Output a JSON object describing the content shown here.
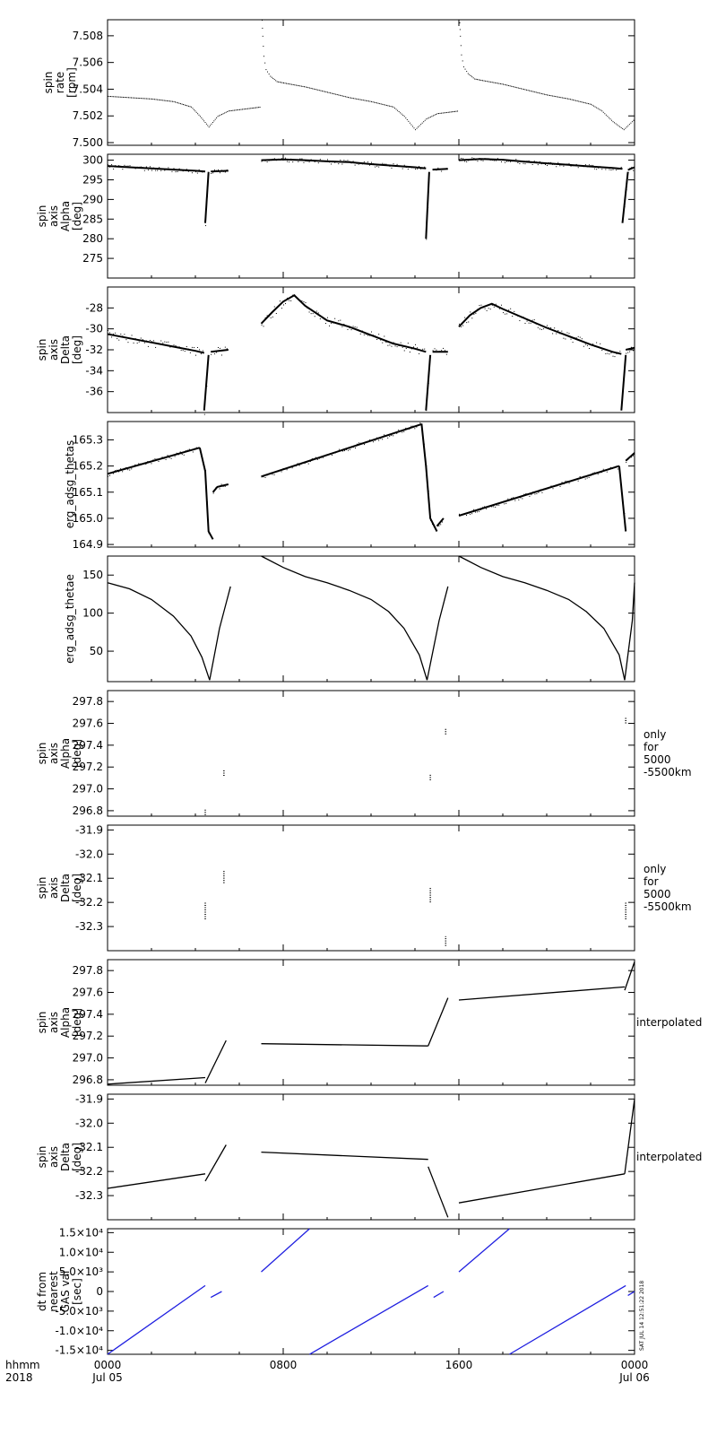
{
  "chart_data": [
    {
      "type": "line",
      "ylabel_lines": [
        "spin",
        "rate",
        "[rpm]"
      ],
      "yticks": [
        "7.500",
        "7.502",
        "7.504",
        "7.506",
        "7.508"
      ],
      "ylim": [
        7.4998,
        7.5092
      ],
      "style": "dots",
      "color": "#000000",
      "series": [
        {
          "x": [
            0,
            1,
            2,
            3,
            3.8,
            4.2,
            4.6,
            5.0,
            5.5,
            6.0,
            6.5,
            6.98
          ],
          "y": [
            7.5035,
            7.5034,
            7.5033,
            7.5031,
            7.5027,
            7.502,
            7.5012,
            7.502,
            7.5024,
            7.5025,
            7.5026,
            7.5027
          ]
        },
        {
          "x": [
            7.02,
            7.05,
            7.1,
            7.2,
            7.4,
            7.7,
            8,
            9,
            10,
            11,
            12,
            13,
            13.5,
            14.0,
            14.5,
            15.0,
            15.5,
            15.98
          ],
          "y": [
            7.5092,
            7.508,
            7.5065,
            7.5055,
            7.505,
            7.5046,
            7.5045,
            7.5042,
            7.5038,
            7.5034,
            7.5031,
            7.5027,
            7.502,
            7.501,
            7.5018,
            7.5022,
            7.5023,
            7.5024
          ]
        },
        {
          "x": [
            16.02,
            16.05,
            16.1,
            16.2,
            16.4,
            16.7,
            17,
            18,
            19,
            20,
            21,
            22,
            22.5,
            23.0,
            23.5,
            24.0
          ],
          "y": [
            7.509,
            7.508,
            7.5066,
            7.5057,
            7.5052,
            7.5048,
            7.5047,
            7.5044,
            7.504,
            7.5036,
            7.5033,
            7.5029,
            7.5024,
            7.5016,
            7.501,
            7.5018
          ]
        }
      ]
    },
    {
      "type": "line",
      "ylabel_lines": [
        "spin",
        "axis",
        "Alpha",
        "[deg]"
      ],
      "yticks": [
        "275",
        "280",
        "285",
        "290",
        "295",
        "300"
      ],
      "ylim": [
        270,
        301.5
      ],
      "style": "band",
      "color": "#000000",
      "series": [
        {
          "x": [
            0,
            1,
            2,
            3,
            4,
            4.45
          ],
          "y": [
            298.5,
            298.2,
            297.9,
            297.6,
            297.3,
            297.1
          ]
        },
        {
          "x": [
            4.45,
            4.6
          ],
          "y": [
            284,
            297
          ]
        },
        {
          "x": [
            4.7,
            5.5
          ],
          "y": [
            297.1,
            297.3
          ]
        },
        {
          "x": [
            7,
            8,
            9,
            10,
            11,
            12,
            13,
            14,
            14.5
          ],
          "y": [
            300.0,
            300.2,
            300.0,
            299.7,
            299.5,
            299.0,
            298.6,
            298.2,
            297.9
          ]
        },
        {
          "x": [
            14.5,
            14.65
          ],
          "y": [
            280,
            297
          ]
        },
        {
          "x": [
            14.8,
            15.5
          ],
          "y": [
            297.6,
            297.8
          ]
        },
        {
          "x": [
            16,
            17,
            18,
            19,
            20,
            21,
            22,
            23,
            23.45
          ],
          "y": [
            300.0,
            300.3,
            300.1,
            299.6,
            299.2,
            298.8,
            298.4,
            298.0,
            297.8
          ]
        },
        {
          "x": [
            23.45,
            23.7
          ],
          "y": [
            284,
            297
          ]
        },
        {
          "x": [
            23.7,
            24
          ],
          "y": [
            297.5,
            298.2
          ]
        }
      ]
    },
    {
      "type": "line",
      "ylabel_lines": [
        "spin",
        "axis",
        "Delta",
        "[deg]"
      ],
      "yticks": [
        "-36",
        "-34",
        "-32",
        "-30",
        "-28"
      ],
      "ylim": [
        -38,
        -26
      ],
      "style": "band",
      "color": "#000000",
      "series": [
        {
          "x": [
            0,
            1,
            2,
            3,
            4,
            4.4
          ],
          "y": [
            -30.5,
            -30.9,
            -31.3,
            -31.7,
            -32.1,
            -32.3
          ]
        },
        {
          "x": [
            4.4,
            4.6
          ],
          "y": [
            -37.8,
            -32.5
          ]
        },
        {
          "x": [
            4.7,
            5.5
          ],
          "y": [
            -32.2,
            -32.0
          ]
        },
        {
          "x": [
            7,
            7.5,
            8,
            8.5,
            9,
            10,
            11,
            12,
            13,
            14,
            14.5
          ],
          "y": [
            -29.5,
            -28.4,
            -27.4,
            -26.8,
            -27.8,
            -29.2,
            -29.8,
            -30.6,
            -31.4,
            -31.9,
            -32.2
          ]
        },
        {
          "x": [
            14.5,
            14.7
          ],
          "y": [
            -37.8,
            -32.5
          ]
        },
        {
          "x": [
            14.8,
            15.5
          ],
          "y": [
            -32.2,
            -32.2
          ]
        },
        {
          "x": [
            16,
            16.5,
            17,
            17.5,
            18,
            19,
            20,
            21,
            22,
            23,
            23.4
          ],
          "y": [
            -29.8,
            -28.7,
            -28.0,
            -27.6,
            -28.1,
            -29.0,
            -29.9,
            -30.7,
            -31.5,
            -32.2,
            -32.4
          ]
        },
        {
          "x": [
            23.4,
            23.6
          ],
          "y": [
            -37.8,
            -32.5
          ]
        },
        {
          "x": [
            23.6,
            24
          ],
          "y": [
            -32.0,
            -31.8
          ]
        }
      ]
    },
    {
      "type": "line",
      "ylabel_lines": [
        "erg_adsg_thetas"
      ],
      "yticks": [
        "164.9",
        "165.0",
        "165.1",
        "165.2",
        "165.3"
      ],
      "ylim": [
        164.89,
        165.37
      ],
      "style": "band",
      "color": "#000000",
      "series": [
        {
          "x": [
            0,
            4.2
          ],
          "y": [
            165.17,
            165.27
          ]
        },
        {
          "x": [
            4.2,
            4.45,
            4.6,
            4.8
          ],
          "y": [
            165.27,
            165.18,
            164.95,
            164.92
          ]
        },
        {
          "x": [
            4.8,
            5.0,
            5.5
          ],
          "y": [
            165.1,
            165.12,
            165.13
          ]
        },
        {
          "x": [
            7,
            14.3
          ],
          "y": [
            165.16,
            165.36
          ]
        },
        {
          "x": [
            14.3,
            14.5,
            14.7,
            15.0
          ],
          "y": [
            165.36,
            165.2,
            165.0,
            164.95
          ]
        },
        {
          "x": [
            15.0,
            15.3
          ],
          "y": [
            164.97,
            165.0
          ]
        },
        {
          "x": [
            16,
            23.3
          ],
          "y": [
            165.01,
            165.2
          ]
        },
        {
          "x": [
            23.3,
            23.6
          ],
          "y": [
            165.2,
            164.95
          ]
        },
        {
          "x": [
            23.6,
            24
          ],
          "y": [
            165.22,
            165.25
          ]
        }
      ]
    },
    {
      "type": "line",
      "ylabel_lines": [
        "erg_adsg_thetae"
      ],
      "yticks": [
        "50",
        "100",
        "150"
      ],
      "ylim": [
        10,
        175
      ],
      "style": "line",
      "color": "#000000",
      "series": [
        {
          "x": [
            0,
            1,
            2,
            3,
            3.8,
            4.3,
            4.65
          ],
          "y": [
            140,
            132,
            118,
            96,
            70,
            42,
            12
          ]
        },
        {
          "x": [
            4.65,
            5.1,
            5.6
          ],
          "y": [
            12,
            80,
            135
          ]
        },
        {
          "x": [
            7,
            8,
            9,
            10,
            11,
            12,
            12.8,
            13.5,
            14.2,
            14.55
          ],
          "y": [
            175,
            160,
            148,
            140,
            130,
            118,
            102,
            80,
            45,
            12
          ]
        },
        {
          "x": [
            14.55,
            15.1,
            15.5
          ],
          "y": [
            12,
            90,
            135
          ]
        },
        {
          "x": [
            16,
            17,
            18,
            19,
            20,
            21,
            21.8,
            22.6,
            23.3,
            23.55
          ],
          "y": [
            175,
            160,
            148,
            140,
            130,
            118,
            102,
            80,
            45,
            12
          ]
        },
        {
          "x": [
            23.55,
            23.9,
            24
          ],
          "y": [
            12,
            90,
            140
          ]
        }
      ]
    },
    {
      "type": "scatter",
      "ylabel_lines": [
        "spin",
        "axis",
        "Alpha",
        "[deg]"
      ],
      "side_note_lines": [
        "only",
        "for",
        "5000",
        "-5500km"
      ],
      "yticks": [
        "296.8",
        "297.0",
        "297.2",
        "297.4",
        "297.6",
        "297.8"
      ],
      "ylim": [
        296.75,
        297.9
      ],
      "style": "ticks",
      "color": "#000000",
      "series": [
        {
          "x": [
            4.45,
            4.45,
            5.3,
            5.3,
            14.7,
            14.7,
            15.4,
            15.4,
            23.6,
            23.6
          ],
          "y": [
            296.76,
            296.82,
            297.12,
            297.17,
            297.08,
            297.13,
            297.5,
            297.55,
            297.6,
            297.65
          ]
        }
      ]
    },
    {
      "type": "scatter",
      "ylabel_lines": [
        "spin",
        "axis",
        "Delta",
        "[deg]"
      ],
      "side_note_lines": [
        "only",
        "for",
        "5000",
        "-5500km"
      ],
      "yticks": [
        "-32.3",
        "-32.2",
        "-32.1",
        "-32.0",
        "-31.9"
      ],
      "ylim": [
        -32.4,
        -31.88
      ],
      "style": "ticks",
      "color": "#000000",
      "series": [
        {
          "x": [
            4.45,
            4.45,
            5.3,
            5.3,
            14.7,
            14.7,
            15.4,
            15.4,
            23.6,
            23.6
          ],
          "y": [
            -32.27,
            -32.2,
            -32.12,
            -32.07,
            -32.2,
            -32.14,
            -32.38,
            -32.34,
            -32.27,
            -32.2
          ]
        }
      ]
    },
    {
      "type": "line",
      "ylabel_lines": [
        "spin",
        "axis",
        "Alpha",
        "[deg]"
      ],
      "side_note_lines": [
        "interpolated"
      ],
      "yticks": [
        "296.8",
        "297.0",
        "297.2",
        "297.4",
        "297.6",
        "297.8"
      ],
      "ylim": [
        296.75,
        297.9
      ],
      "style": "line",
      "color": "#000000",
      "series": [
        {
          "x": [
            0,
            4.45
          ],
          "y": [
            296.76,
            296.82
          ]
        },
        {
          "x": [
            4.45,
            5.4
          ],
          "y": [
            296.77,
            297.16
          ]
        },
        {
          "x": [
            7,
            14.6
          ],
          "y": [
            297.13,
            297.11
          ]
        },
        {
          "x": [
            14.6,
            15.5
          ],
          "y": [
            297.11,
            297.55
          ]
        },
        {
          "x": [
            16,
            23.55
          ],
          "y": [
            297.53,
            297.65
          ]
        },
        {
          "x": [
            23.55,
            24
          ],
          "y": [
            297.62,
            297.88
          ]
        }
      ]
    },
    {
      "type": "line",
      "ylabel_lines": [
        "spin",
        "axis",
        "Delta",
        "[deg]"
      ],
      "side_note_lines": [
        "interpolated"
      ],
      "yticks": [
        "-32.3",
        "-32.2",
        "-32.1",
        "-32.0",
        "-31.9"
      ],
      "ylim": [
        -32.4,
        -31.88
      ],
      "style": "line",
      "color": "#000000",
      "series": [
        {
          "x": [
            0,
            4.45
          ],
          "y": [
            -32.27,
            -32.21
          ]
        },
        {
          "x": [
            4.45,
            5.4
          ],
          "y": [
            -32.24,
            -32.09
          ]
        },
        {
          "x": [
            7,
            14.6
          ],
          "y": [
            -32.12,
            -32.15
          ]
        },
        {
          "x": [
            14.6,
            15.5
          ],
          "y": [
            -32.18,
            -32.39
          ]
        },
        {
          "x": [
            16,
            23.55
          ],
          "y": [
            -32.33,
            -32.21
          ]
        },
        {
          "x": [
            23.55,
            24
          ],
          "y": [
            -32.21,
            -31.9
          ]
        }
      ]
    },
    {
      "type": "line",
      "ylabel_lines": [
        "dt from",
        "nearest",
        "GAS val",
        "[sec]"
      ],
      "yticks": [
        "-1.5×10⁴",
        "-1.0×10⁴",
        "-5.0×10³",
        "0",
        "5.0×10³",
        "1.0×10⁴",
        "1.5×10⁴"
      ],
      "ylim": [
        -16000,
        16000
      ],
      "style": "line",
      "color": "#1f1fe0",
      "series": [
        {
          "x": [
            0,
            4.45
          ],
          "y": [
            -16000,
            1500
          ]
        },
        {
          "x": [
            4.7,
            5.2
          ],
          "y": [
            -1500,
            0
          ]
        },
        {
          "x": [
            7,
            9.2
          ],
          "y": [
            5000,
            16000
          ]
        },
        {
          "x": [
            9.2,
            14.6
          ],
          "y": [
            -16000,
            1500
          ]
        },
        {
          "x": [
            14.85,
            15.3
          ],
          "y": [
            -1500,
            0
          ]
        },
        {
          "x": [
            16,
            18.3
          ],
          "y": [
            5000,
            16000
          ]
        },
        {
          "x": [
            18.3,
            23.6
          ],
          "y": [
            -16000,
            1500
          ]
        },
        {
          "x": [
            23.7,
            24
          ],
          "y": [
            -1000,
            0
          ]
        }
      ]
    }
  ],
  "x_axis": {
    "row1": [
      "0000",
      "0800",
      "1600",
      "0000"
    ],
    "row2": [
      "Jul 05",
      "",
      "",
      "Jul 06"
    ],
    "left_row1": "hhmm",
    "left_row2": "2018",
    "xlim": [
      0,
      24
    ],
    "ticks": [
      0,
      8,
      16,
      24
    ]
  },
  "stamp": "SAT JUL 14 12:51:22 2018"
}
